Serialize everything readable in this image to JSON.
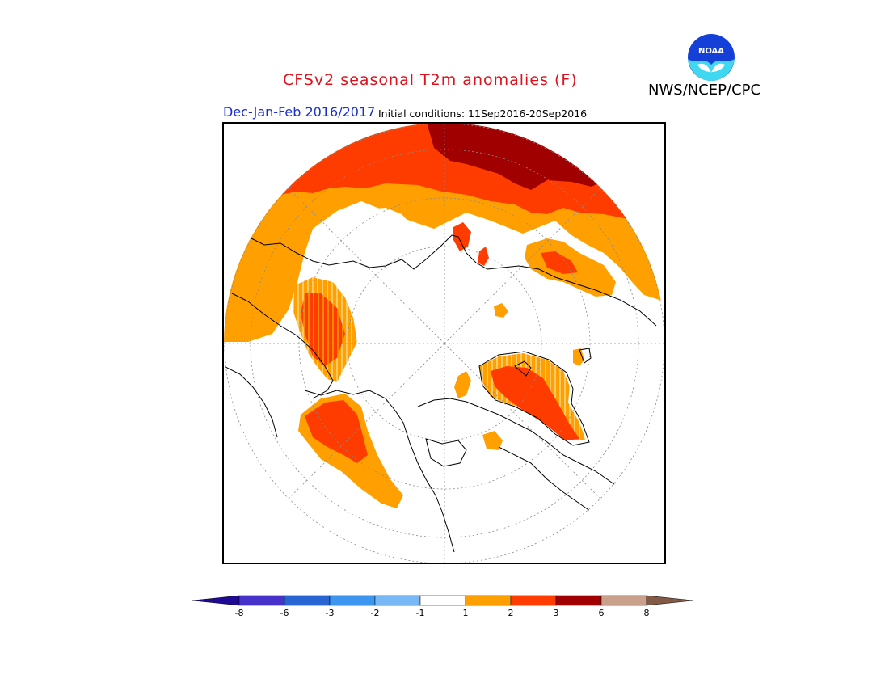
{
  "header": {
    "title": "CFSv2 seasonal T2m anomalies (F)",
    "agency": "NWS/NCEP/CPC",
    "season": "Dec-Jan-Feb 2016/2017",
    "initial_conditions": "Initial conditions: 11Sep2016-20Sep2016",
    "logo_text": "NOAA"
  },
  "map": {
    "projection": "north-polar-stereographic",
    "variable": "2m temperature anomaly",
    "units": "F"
  },
  "legend": {
    "tick_labels": [
      "-8",
      "-6",
      "-3",
      "-2",
      "-1",
      "1",
      "2",
      "3",
      "6",
      "8"
    ],
    "bins": [
      {
        "range": "< -8",
        "color": "#1e0a96"
      },
      {
        "range": "-8 to -6",
        "color": "#4632c8"
      },
      {
        "range": "-6 to -3",
        "color": "#2864d2"
      },
      {
        "range": "-3 to -2",
        "color": "#3c96f0"
      },
      {
        "range": "-2 to -1",
        "color": "#78b9f5"
      },
      {
        "range": "-1 to 1",
        "color": "#ffffff"
      },
      {
        "range": "1 to 2",
        "color": "#ffa000"
      },
      {
        "range": "2 to 3",
        "color": "#ff3c00"
      },
      {
        "range": "3 to 6",
        "color": "#a00000"
      },
      {
        "range": "6 to 8",
        "color": "#c8a08c"
      },
      {
        "range": "> 8",
        "color": "#825a46"
      }
    ]
  }
}
